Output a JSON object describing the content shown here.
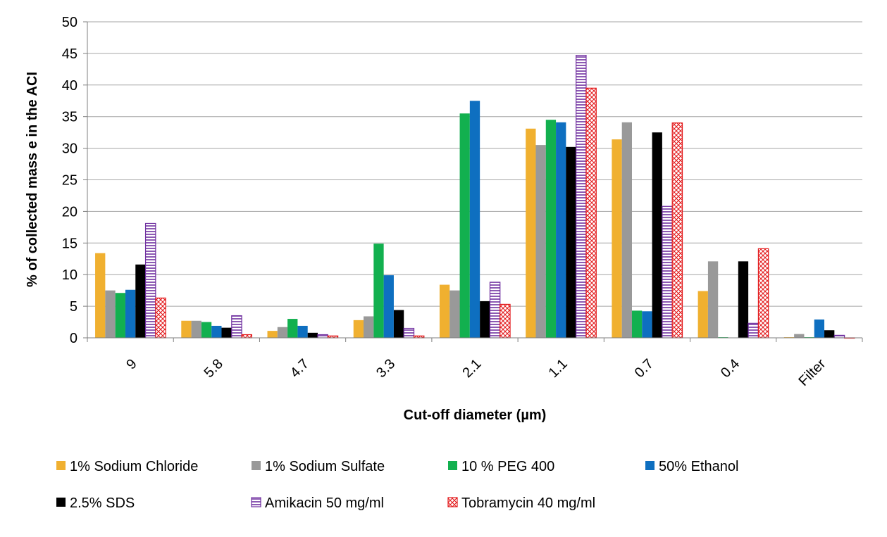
{
  "chart_data": {
    "type": "bar",
    "xlabel": "Cut-off diameter (µm)",
    "ylabel": "% of collected mass e in the ACI",
    "ylim": [
      0,
      50
    ],
    "yticks": [
      0,
      5,
      10,
      15,
      20,
      25,
      30,
      35,
      40,
      45,
      50
    ],
    "grid": true,
    "legend_position": "bottom",
    "categories": [
      "9",
      "5.8",
      "4.7",
      "3.3",
      "2.1",
      "1.1",
      "0.7",
      "0.4",
      "Filter"
    ],
    "series": [
      {
        "name": "1% Sodium Chloride",
        "color": "#F0B030",
        "pattern": "solid",
        "values": [
          13.4,
          2.7,
          1.1,
          2.8,
          8.4,
          33.1,
          31.4,
          7.4,
          0.1
        ]
      },
      {
        "name": "1% Sodium Sulfate",
        "color": "#999999",
        "pattern": "solid",
        "values": [
          7.5,
          2.7,
          1.7,
          3.4,
          7.5,
          30.5,
          34.1,
          12.1,
          0.6
        ]
      },
      {
        "name": "10 % PEG 400",
        "color": "#12B04F",
        "pattern": "solid",
        "values": [
          7.1,
          2.5,
          3.0,
          14.9,
          35.5,
          34.5,
          4.3,
          0.1,
          0.1
        ]
      },
      {
        "name": "50% Ethanol",
        "color": "#0E6FC0",
        "pattern": "solid",
        "values": [
          7.6,
          1.9,
          1.9,
          9.9,
          37.5,
          34.1,
          4.2,
          0.0,
          2.9
        ]
      },
      {
        "name": "2.5% SDS",
        "color": "#000000",
        "pattern": "solid",
        "values": [
          11.6,
          1.6,
          0.8,
          4.4,
          5.8,
          30.2,
          32.5,
          12.1,
          1.2
        ]
      },
      {
        "name": "Amikacin 50 mg/ml",
        "color": "#7030A0",
        "pattern": "horizontal-lines",
        "values": [
          18.1,
          3.5,
          0.5,
          1.5,
          8.8,
          44.7,
          20.8,
          2.3,
          0.4
        ]
      },
      {
        "name": "Tobramycin 40 mg/ml",
        "color": "#E31A1C",
        "pattern": "crosshatch",
        "values": [
          6.3,
          0.5,
          0.3,
          0.3,
          5.3,
          39.5,
          34.0,
          14.1,
          0.0
        ]
      }
    ]
  }
}
